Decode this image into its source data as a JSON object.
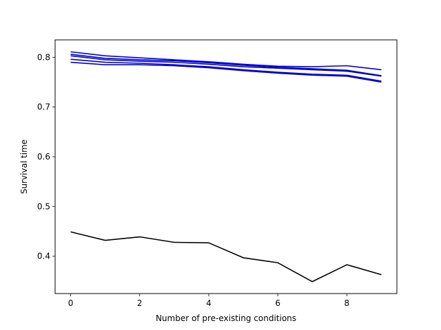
{
  "chart_data": {
    "type": "line",
    "title": "",
    "xlabel": "Number of pre-existing conditions",
    "ylabel": "Survival time",
    "xlim": [
      -0.45,
      9.45
    ],
    "ylim": [
      0.325,
      0.835
    ],
    "x_ticks": [
      0,
      2,
      4,
      6,
      8
    ],
    "y_ticks": [
      0.4,
      0.5,
      0.6,
      0.7,
      0.8
    ],
    "grid": false,
    "legend": "none",
    "x": [
      0,
      1,
      2,
      3,
      4,
      5,
      6,
      7,
      8,
      9
    ],
    "series": [
      {
        "color": "#0000cc",
        "values": [
          0.811,
          0.803,
          0.799,
          0.795,
          0.791,
          0.786,
          0.782,
          0.781,
          0.783,
          0.775
        ]
      },
      {
        "color": "#0000cc",
        "values": [
          0.806,
          0.798,
          0.795,
          0.793,
          0.789,
          0.784,
          0.78,
          0.777,
          0.774,
          0.763
        ]
      },
      {
        "color": "#0000cc",
        "values": [
          0.803,
          0.795,
          0.792,
          0.79,
          0.786,
          0.781,
          0.778,
          0.775,
          0.772,
          0.762
        ]
      },
      {
        "color": "#0000cc",
        "values": [
          0.796,
          0.79,
          0.788,
          0.785,
          0.781,
          0.775,
          0.77,
          0.766,
          0.764,
          0.752
        ]
      },
      {
        "color": "#0000cc",
        "values": [
          0.79,
          0.785,
          0.785,
          0.783,
          0.779,
          0.773,
          0.768,
          0.764,
          0.762,
          0.75
        ]
      },
      {
        "color": "#000000",
        "values": [
          0.449,
          0.432,
          0.439,
          0.428,
          0.427,
          0.397,
          0.387,
          0.349,
          0.383,
          0.363
        ]
      }
    ]
  }
}
